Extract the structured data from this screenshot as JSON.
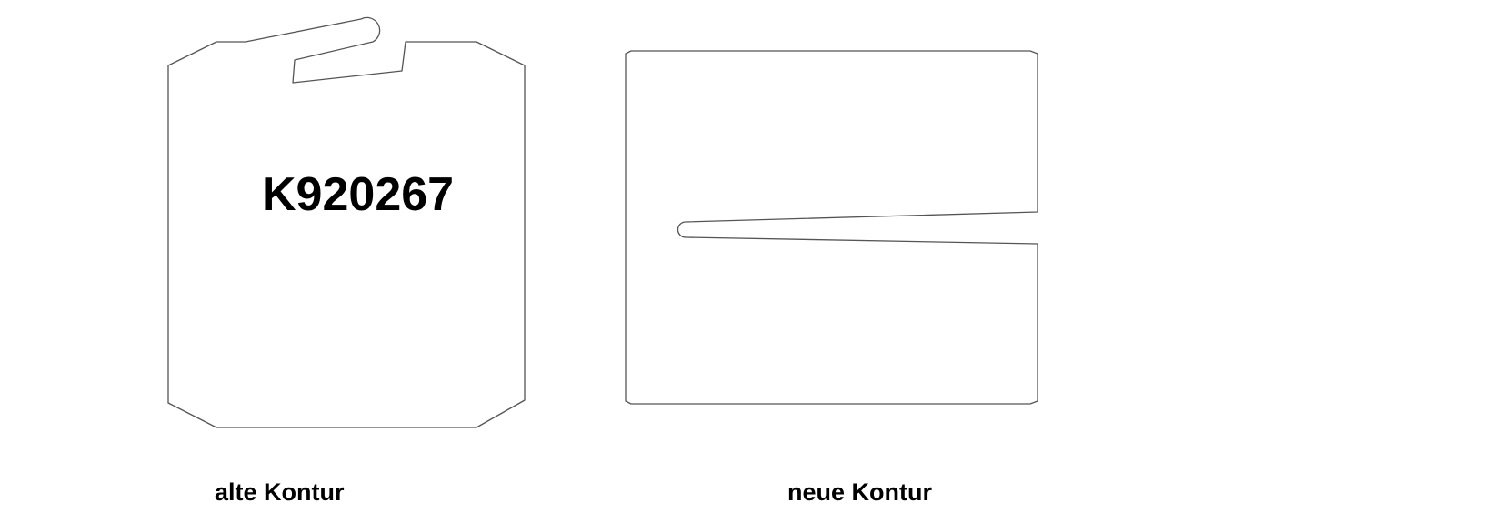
{
  "diagram": {
    "old_contour": {
      "part_number": "K920267",
      "caption": "alte Kontur"
    },
    "new_contour": {
      "caption": "neue Kontur"
    },
    "colors": {
      "outline": "#555555",
      "text": "#000000",
      "background": "#ffffff"
    }
  }
}
